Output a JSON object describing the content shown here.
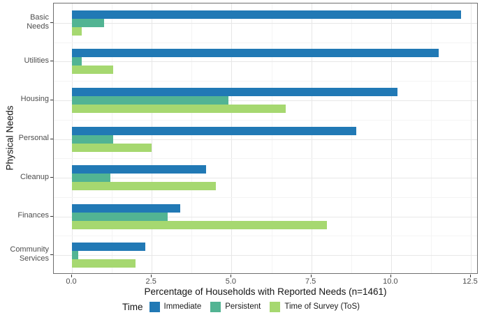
{
  "chart_data": {
    "type": "bar",
    "orientation": "horizontal",
    "title": "",
    "xlabel": "Percentage of Households with Reported Needs (n=1461)",
    "ylabel": "Physical Needs",
    "legend_title": "Time",
    "legend_position": "bottom",
    "grid": true,
    "categories": [
      "Basic Needs",
      "Utilities",
      "Housing",
      "Personal",
      "Cleanup",
      "Finances",
      "Community Services"
    ],
    "category_display_lines": [
      [
        "Basic",
        "Needs"
      ],
      [
        "Utilities"
      ],
      [
        "Housing"
      ],
      [
        "Personal"
      ],
      [
        "Cleanup"
      ],
      [
        "Finances"
      ],
      [
        "Community",
        "Services"
      ]
    ],
    "series": [
      {
        "name": "Immediate",
        "color": "#2179b5",
        "values": [
          12.2,
          11.5,
          10.2,
          8.9,
          4.2,
          3.4,
          2.3
        ]
      },
      {
        "name": "Persistent",
        "color": "#52b493",
        "values": [
          1.0,
          0.3,
          4.9,
          1.3,
          1.2,
          3.0,
          0.2
        ]
      },
      {
        "name": "Time of Survey (ToS)",
        "color": "#a6d870",
        "values": [
          0.3,
          1.3,
          6.7,
          2.5,
          4.5,
          8.0,
          2.0
        ]
      }
    ],
    "xlim": [
      0,
      12.5
    ],
    "xtick_labels": [
      "0.0",
      "2.5",
      "5.0",
      "7.5",
      "10.0",
      "12.5"
    ],
    "xtick_values": [
      0,
      2.5,
      5,
      7.5,
      10,
      12.5
    ],
    "minor_tick_values": [
      1.25,
      3.75,
      6.25,
      8.75,
      11.25
    ]
  }
}
